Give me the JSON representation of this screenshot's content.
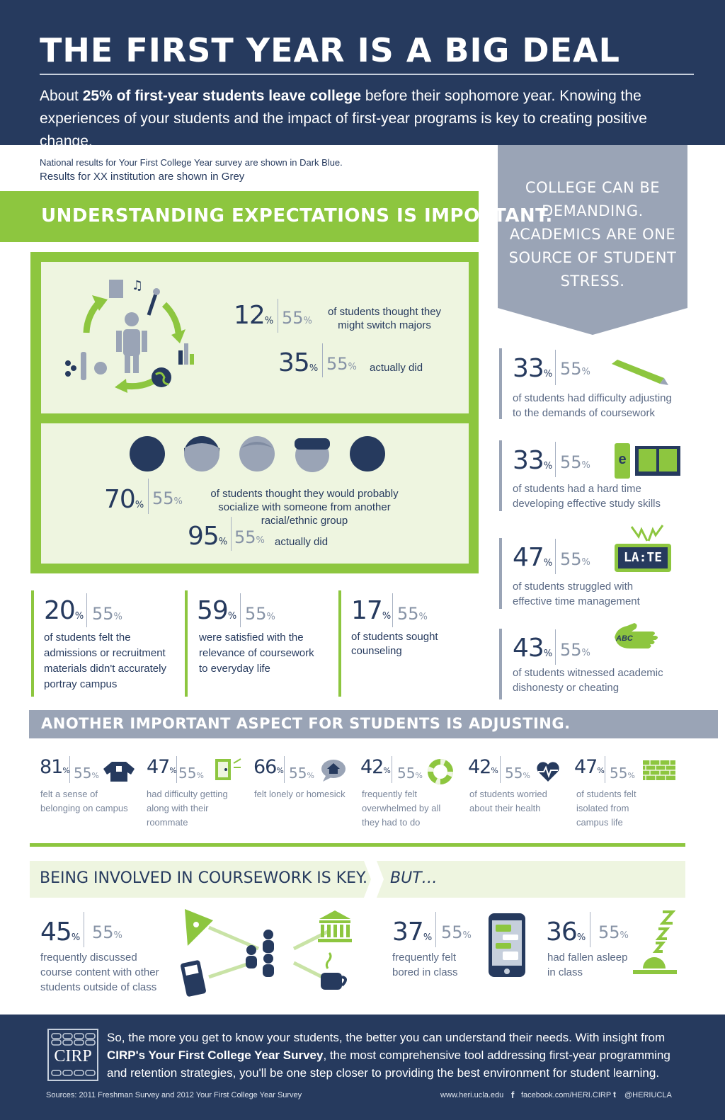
{
  "header": {
    "title": "THE FIRST YEAR IS A BIG DEAL",
    "intro_pre": "About ",
    "intro_bold": "25% of first-year students leave college",
    "intro_post": " before their sophomore year. Knowing the experiences of your students and the impact of first-year programs is key to creating positive change."
  },
  "notes": {
    "national": "National results for Your First College Year survey are shown in Dark Blue.",
    "institution": "Results for XX institution are shown in Grey"
  },
  "expectations": {
    "heading": "UNDERSTANDING EXPECTATIONS IS IMPORTANT.",
    "majors": {
      "thought_value": "12",
      "thought_grey": "55",
      "thought_text": "of students thought they might switch majors",
      "did_value": "35",
      "did_grey": "55",
      "did_text": "actually did"
    },
    "socialize": {
      "thought_value": "70",
      "thought_grey": "55",
      "thought_text": "of students thought they would probably socialize with someone from another racial/ethnic group",
      "did_value": "95",
      "did_grey": "55",
      "did_text": "actually did"
    },
    "bottom_stats": [
      {
        "value": "20",
        "grey": "55",
        "text": "of students felt the admissions or recruitment materials didn't accurately portray campus"
      },
      {
        "value": "59",
        "grey": "55",
        "text": "were satisfied with the relevance of coursework to everyday life"
      },
      {
        "value": "17",
        "grey": "55",
        "text": "of students sought counseling"
      }
    ]
  },
  "demanding": {
    "callout": "COLLEGE CAN BE DEMANDING. ACADEMICS ARE ONE SOURCE OF STUDENT STRESS.",
    "stats": [
      {
        "value": "33",
        "grey": "55",
        "text": "of students had difficulty adjusting to the demands of coursework"
      },
      {
        "value": "33",
        "grey": "55",
        "text": "of students had a hard time developing effective study skills"
      },
      {
        "value": "47",
        "grey": "55",
        "text": "of students struggled with effective time management"
      },
      {
        "value": "43",
        "grey": "55",
        "text": "of students witnessed academic dishonesty or cheating"
      }
    ],
    "late_sign": "LA:TE",
    "ebook_letter": "e",
    "abc": "ABC"
  },
  "adjusting": {
    "heading": "ANOTHER IMPORTANT ASPECT FOR STUDENTS IS ADJUSTING.",
    "stats": [
      {
        "value": "81",
        "grey": "55",
        "text": "felt a sense of belonging on campus"
      },
      {
        "value": "47",
        "grey": "55",
        "text": "had difficulty getting along with their roommate"
      },
      {
        "value": "66",
        "grey": "55",
        "text": "felt lonely or homesick"
      },
      {
        "value": "42",
        "grey": "55",
        "text": "frequently felt overwhelmed by all they had to do"
      },
      {
        "value": "42",
        "grey": "55",
        "text": "of students worried about their health"
      },
      {
        "value": "47",
        "grey": "55",
        "text": "of students felt isolated from campus life"
      }
    ]
  },
  "coursework": {
    "heading": "BEING INVOLVED IN COURSEWORK IS KEY.",
    "but": "BUT…",
    "discussed": {
      "value": "45",
      "grey": "55",
      "text": "frequently discussed course content with other students outside of class"
    },
    "bored": {
      "value": "37",
      "grey": "55",
      "text": "frequently felt bored in class"
    },
    "asleep": {
      "value": "36",
      "grey": "55",
      "text": "had fallen asleep in class"
    }
  },
  "pct": "%",
  "footer": {
    "logo": "CIRP",
    "text_pre": "So, the more you get to know your students, the better you can understand their needs. With insight from ",
    "text_bold": "CIRP's Your First College Year Survey",
    "text_post": ", the most comprehensive tool addressing first-year programming and retention strategies, you'll be one step closer to providing the best environment for student learning.",
    "sources": "Sources: 2011 Freshman Survey and 2012 Your First College Year Survey",
    "website": "www.heri.ucla.edu",
    "facebook": "facebook.com/HERI.CIRP",
    "twitter": "@HERIUCLA"
  },
  "colors": {
    "navy": "#263a5e",
    "green": "#8dc63f",
    "grey": "#9aa4b6",
    "pale_green": "#eef5e0"
  }
}
